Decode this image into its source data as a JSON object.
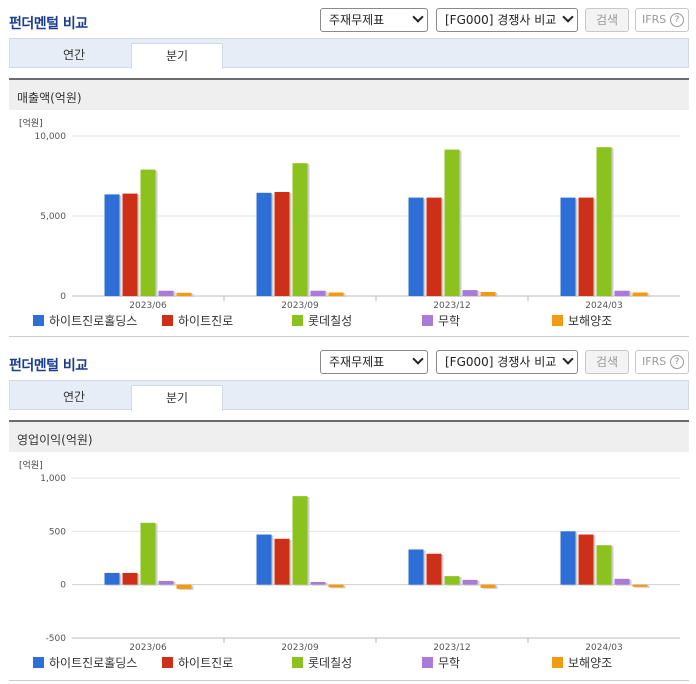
{
  "panels": [
    {
      "title": "펀더멘털 비교",
      "select_statement": "주재무제표",
      "select_compare": "[FG000] 경쟁사 비교",
      "search_label": "검색",
      "ifrs_label": "IFRS",
      "ifrs_help": "?",
      "tabs": [
        "연간",
        "분기"
      ],
      "active_tab": "분기",
      "metric_title": "매출액(억원)"
    },
    {
      "title": "펀더멘털 비교",
      "select_statement": "주재무제표",
      "select_compare": "[FG000] 경쟁사 비교",
      "search_label": "검색",
      "ifrs_label": "IFRS",
      "ifrs_help": "?",
      "tabs": [
        "연간",
        "분기"
      ],
      "active_tab": "분기",
      "metric_title": "영업이익(억원)"
    }
  ],
  "colors": {
    "하이트진로홀딩스": "#2d6fd6",
    "하이트진로": "#cc3018",
    "롯데칠성": "#8cc21d",
    "무학": "#a97bd6",
    "보해양조": "#f29a12"
  },
  "chart_data": [
    {
      "type": "bar",
      "unit_label": "[억원]",
      "categories": [
        "2023/06",
        "2023/09",
        "2023/12",
        "2024/03"
      ],
      "ylim": [
        0,
        10000
      ],
      "yticks": [
        0,
        5000,
        10000
      ],
      "ytick_labels": [
        "0",
        "5,000",
        "10,000"
      ],
      "series": [
        {
          "name": "하이트진로홀딩스",
          "values": [
            6350,
            6450,
            6150,
            6150
          ]
        },
        {
          "name": "하이트진로",
          "values": [
            6400,
            6500,
            6150,
            6150
          ]
        },
        {
          "name": "롯데칠성",
          "values": [
            7900,
            8300,
            9150,
            9300
          ]
        },
        {
          "name": "무학",
          "values": [
            330,
            330,
            370,
            330
          ]
        },
        {
          "name": "보해양조",
          "values": [
            200,
            220,
            250,
            220
          ]
        }
      ]
    },
    {
      "type": "bar",
      "unit_label": "[억원]",
      "categories": [
        "2023/06",
        "2023/09",
        "2023/12",
        "2024/03"
      ],
      "ylim": [
        -500,
        1000
      ],
      "yticks": [
        -500,
        0,
        500,
        1000
      ],
      "ytick_labels": [
        "-500",
        "0",
        "500",
        "1,000"
      ],
      "series": [
        {
          "name": "하이트진로홀딩스",
          "values": [
            110,
            470,
            330,
            500
          ]
        },
        {
          "name": "하이트진로",
          "values": [
            110,
            430,
            290,
            470
          ]
        },
        {
          "name": "롯데칠성",
          "values": [
            580,
            830,
            80,
            370
          ]
        },
        {
          "name": "무학",
          "values": [
            35,
            25,
            45,
            55
          ]
        },
        {
          "name": "보해양조",
          "values": [
            -40,
            -25,
            -30,
            -20
          ]
        }
      ]
    }
  ]
}
